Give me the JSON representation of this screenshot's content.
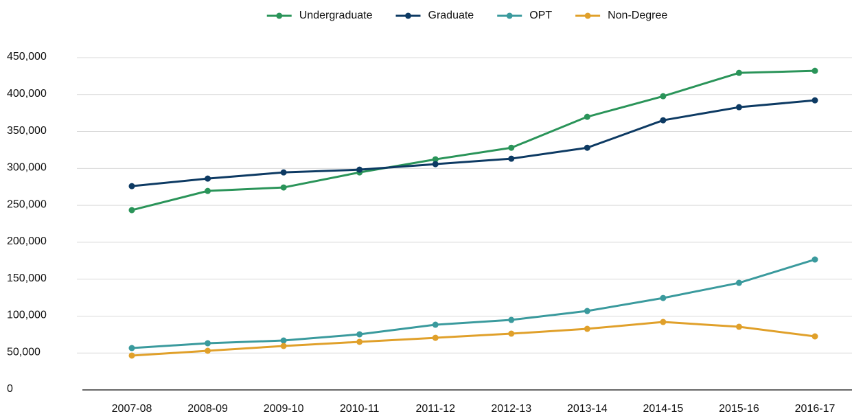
{
  "chart_data": {
    "type": "line",
    "categories": [
      "2007-08",
      "2008-09",
      "2009-10",
      "2010-11",
      "2011-12",
      "2012-13",
      "2013-14",
      "2014-15",
      "2015-16",
      "2016-17"
    ],
    "series": [
      {
        "name": "Undergraduate",
        "color": "#2a9459",
        "values": [
          243500,
          269500,
          274200,
          294600,
          312300,
          328000,
          369900,
          397800,
          429400,
          432200
        ]
      },
      {
        "name": "Graduate",
        "color": "#0d3a63",
        "values": [
          276000,
          286200,
          294600,
          298300,
          305800,
          313200,
          328000,
          365200,
          382900,
          392200
        ]
      },
      {
        "name": "OPT",
        "color": "#3a9a9d",
        "values": [
          56700,
          63200,
          66900,
          75300,
          88300,
          94800,
          106900,
          124500,
          145000,
          176600
        ]
      },
      {
        "name": "Non-Degree",
        "color": "#e0a02a",
        "values": [
          46500,
          53000,
          59500,
          65100,
          70600,
          76200,
          82700,
          92000,
          85500,
          72500
        ]
      }
    ],
    "ylim": [
      0,
      450000
    ],
    "yticks": [
      0,
      {
        "value": 50000,
        "label": "50,000"
      },
      {
        "value": 100000,
        "label": "100,000"
      },
      {
        "value": 150000,
        "label": "150,000"
      },
      {
        "value": 200000,
        "label": "200,000"
      },
      {
        "value": 250000,
        "label": "250,000"
      },
      {
        "value": 300000,
        "label": "300,000"
      },
      {
        "value": 350000,
        "label": "350,000"
      },
      {
        "value": 400000,
        "label": "400,000"
      },
      {
        "value": 450000,
        "label": "450,000"
      }
    ],
    "grid": true,
    "legend": "top"
  }
}
